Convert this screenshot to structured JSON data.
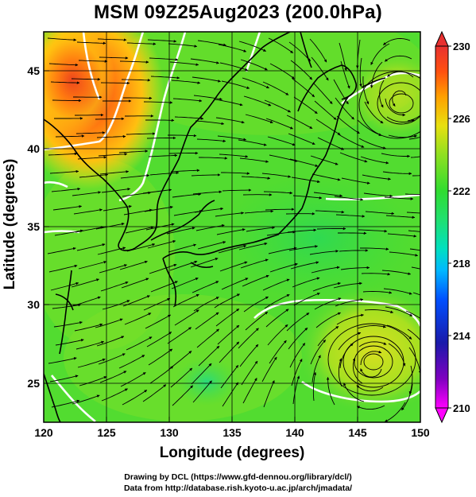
{
  "title": "MSM 09Z25Aug2023 (200.0hPa)",
  "axes": {
    "x_label": "Longitude (degrees)",
    "y_label": "Latitude  (degrees)",
    "x_ticks": [
      "120",
      "125",
      "130",
      "135",
      "140",
      "145",
      "150"
    ],
    "y_ticks": [
      "25",
      "30",
      "35",
      "40",
      "45"
    ],
    "x_range": [
      120,
      150
    ],
    "y_range": [
      22.5,
      47.5
    ]
  },
  "colorbar": {
    "labels": [
      "230",
      "226",
      "222",
      "218",
      "214",
      "210"
    ],
    "range": [
      210,
      230
    ],
    "colors": [
      "#ff00ff",
      "#8000c0",
      "#1a1aaa",
      "#0050ff",
      "#00b8ff",
      "#00e0c0",
      "#20e070",
      "#30dc30",
      "#90e020",
      "#e8e010",
      "#ffa000",
      "#ff5010",
      "#e83030"
    ]
  },
  "credits": {
    "line1": "Drawing by DCL (https://www.gfd-dennou.org/library/dcl/)",
    "line2": "Data from http://database.rish.kyoto-u.ac.jp/arch/jmadata/"
  }
}
